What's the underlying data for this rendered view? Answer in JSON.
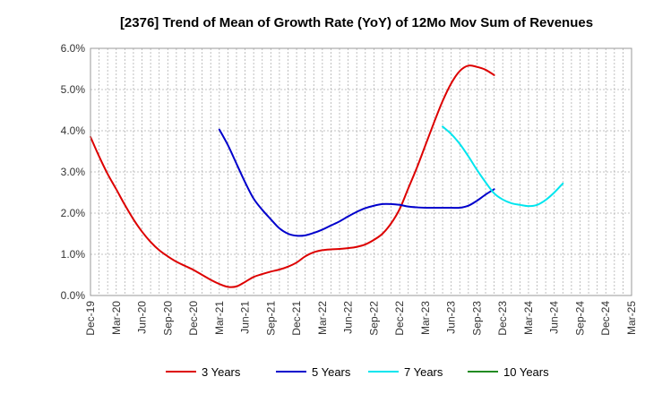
{
  "chart_data": {
    "type": "line",
    "title": "[2376]  Trend of Mean of Growth Rate (YoY) of 12Mo Mov Sum of Revenues",
    "xlabel": "",
    "ylabel": "",
    "ylim": [
      0,
      6
    ],
    "y_ticks": [
      "0.0%",
      "1.0%",
      "2.0%",
      "3.0%",
      "4.0%",
      "5.0%",
      "6.0%"
    ],
    "x_ticks": [
      "Dec-19",
      "Mar-20",
      "Jun-20",
      "Sep-20",
      "Dec-20",
      "Mar-21",
      "Jun-21",
      "Sep-21",
      "Dec-21",
      "Mar-22",
      "Jun-22",
      "Sep-22",
      "Dec-22",
      "Mar-23",
      "Jun-23",
      "Sep-23",
      "Dec-23",
      "Mar-24",
      "Jun-24",
      "Sep-24",
      "Dec-24",
      "Mar-25"
    ],
    "grid": true,
    "legend_position": "bottom",
    "series": [
      {
        "name": "3 Years",
        "color": "#dd0000",
        "start_index": 0,
        "values": [
          3.85,
          3.38,
          2.95,
          2.58,
          2.2,
          1.85,
          1.55,
          1.3,
          1.1,
          0.95,
          0.82,
          0.72,
          0.62,
          0.5,
          0.38,
          0.28,
          0.21,
          0.22,
          0.33,
          0.45,
          0.52,
          0.58,
          0.63,
          0.7,
          0.8,
          0.95,
          1.05,
          1.1,
          1.12,
          1.13,
          1.15,
          1.18,
          1.24,
          1.35,
          1.5,
          1.75,
          2.1,
          2.6,
          3.1,
          3.65,
          4.2,
          4.72,
          5.15,
          5.45,
          5.58,
          5.55,
          5.48,
          5.35
        ]
      },
      {
        "name": "5 Years",
        "color": "#0000cc",
        "start_index": 15,
        "values": [
          4.03,
          3.65,
          3.2,
          2.75,
          2.35,
          2.08,
          1.85,
          1.63,
          1.5,
          1.45,
          1.46,
          1.52,
          1.6,
          1.7,
          1.8,
          1.92,
          2.03,
          2.12,
          2.18,
          2.22,
          2.22,
          2.2,
          2.16,
          2.14,
          2.13,
          2.13,
          2.13,
          2.13,
          2.13,
          2.18,
          2.3,
          2.45,
          2.58
        ]
      },
      {
        "name": "7 Years",
        "color": "#00e5ee",
        "start_index": 41,
        "values": [
          4.1,
          3.92,
          3.68,
          3.38,
          3.05,
          2.75,
          2.48,
          2.33,
          2.24,
          2.2,
          2.17,
          2.2,
          2.32,
          2.5,
          2.72
        ]
      },
      {
        "name": "10 Years",
        "color": "#228B22",
        "start_index": 0,
        "values": []
      }
    ]
  }
}
